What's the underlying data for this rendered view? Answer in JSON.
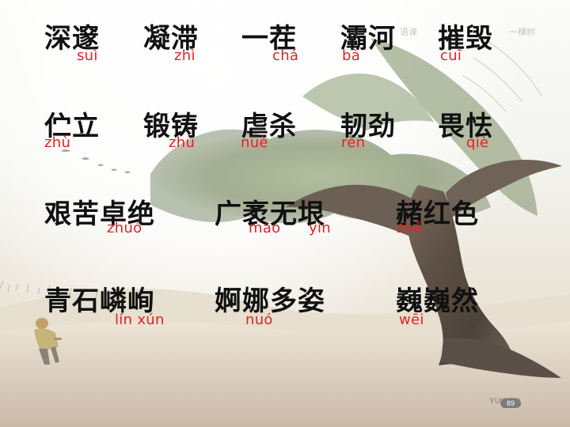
{
  "rows": [
    {
      "words": [
        "深邃",
        "凝滞",
        "一茬",
        "灞河",
        "摧毁"
      ],
      "pinyin": [
        "suì",
        "zhì",
        "chá",
        "bà",
        "cuī"
      ]
    },
    {
      "words": [
        "伫立",
        "锻铸",
        "虐杀",
        "韧劲",
        "畏怯"
      ],
      "pinyin": [
        "zhù",
        "zhù",
        "nüè",
        "rèn",
        "qiè"
      ]
    },
    {
      "words": [
        "艰苦卓绝",
        "广袤无垠",
        "赭红色"
      ],
      "pinyin": [
        "zhuó",
        "mào",
        "yín",
        "zhě"
      ]
    },
    {
      "words": [
        "青石嶙峋",
        "婀娜多姿",
        "巍巍然"
      ],
      "pinyin": [
        "lín xún",
        "nuó",
        "wēi"
      ]
    }
  ],
  "header_faint": [
    "语课",
    "一棵树"
  ],
  "footer": {
    "label": "YUWEN",
    "page": "89"
  },
  "colors": {
    "text": "#111111",
    "pinyin": "#e02323",
    "page_badge": "#7a7b7b"
  }
}
